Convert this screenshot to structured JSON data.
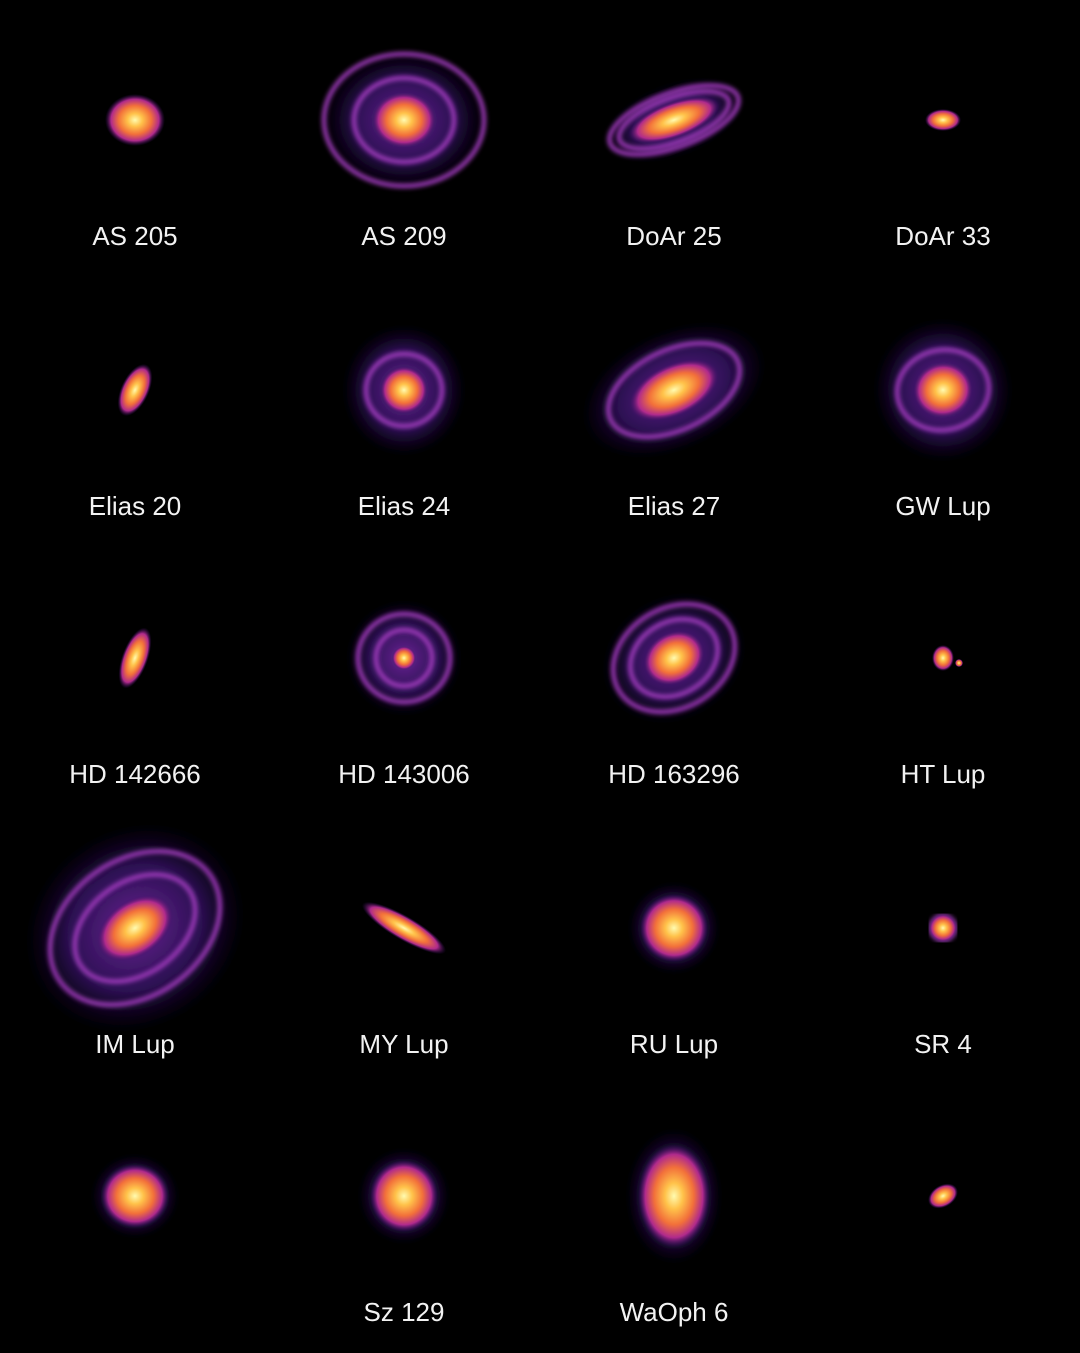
{
  "labels": [
    "AS 205",
    "AS 209",
    "DoAr 25",
    "DoAr 33",
    "Elias 20",
    "Elias 24",
    "Elias 27",
    "GW Lup",
    "HD 142666",
    "HD 143006",
    "HD 163296",
    "HT Lup",
    "IM Lup",
    "MY Lup",
    "RU Lup",
    "SR 4",
    null,
    "Sz 129",
    "WaOph 6",
    null
  ]
}
